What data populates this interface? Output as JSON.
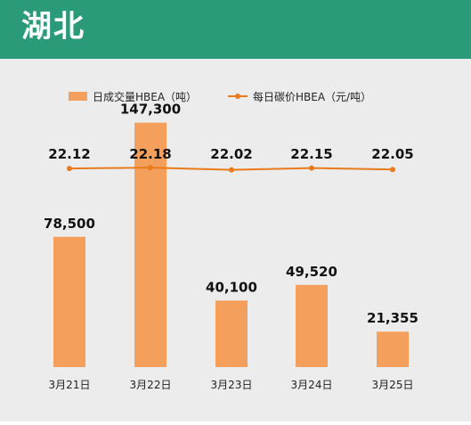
{
  "header": {
    "title": "湖北"
  },
  "colors": {
    "header_bg": "#2a9a78",
    "bar": "#f4a05c",
    "line": "#e87b1e",
    "background": "#ececec"
  },
  "chart_data": {
    "type": "bar+line",
    "categories": [
      "3月21日",
      "3月22日",
      "3月23日",
      "3月24日",
      "3月25日"
    ],
    "series": [
      {
        "name": "日成交量HBEA（吨）",
        "type": "bar",
        "values": [
          78500,
          147300,
          40100,
          49520,
          21355
        ],
        "labels": [
          "78,500",
          "147,300",
          "40,100",
          "49,520",
          "21,355"
        ]
      },
      {
        "name": "每日碳价HBEA（元/吨）",
        "type": "line",
        "values": [
          22.12,
          22.18,
          22.02,
          22.15,
          22.05
        ],
        "labels": [
          "22.12",
          "22.18",
          "22.02",
          "22.15",
          "22.05"
        ]
      }
    ],
    "grid": false,
    "legend_position": "top"
  }
}
